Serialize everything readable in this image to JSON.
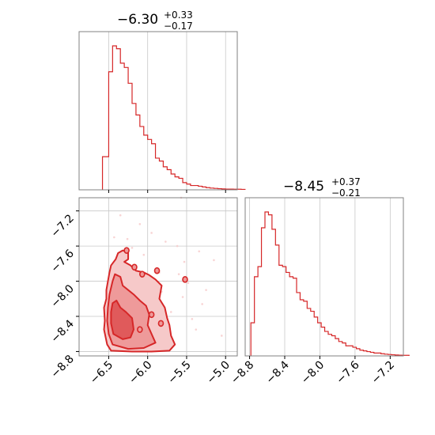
{
  "colors": {
    "line": "#d62728",
    "fill_light": "#f6c9c9",
    "fill_mid": "#ee9a9a",
    "grid": "#c8c8c8",
    "axes": "#808080",
    "background": "#ffffff"
  },
  "chart_data": [
    {
      "type": "histogram",
      "panel": "top-left",
      "title": {
        "median": "−6.30",
        "plus": "+0.33",
        "minus": "−0.17"
      },
      "xlim": [
        -6.88,
        -4.85
      ],
      "grid": true,
      "bins": {
        "start": -6.5,
        "width": 0.05,
        "heights": [
          0.82,
          1.0,
          0.98,
          0.88,
          0.85,
          0.74,
          0.6,
          0.52,
          0.44,
          0.38,
          0.35,
          0.32,
          0.22,
          0.2,
          0.16,
          0.14,
          0.11,
          0.09,
          0.08,
          0.05,
          0.04,
          0.03,
          0.03,
          0.025,
          0.02,
          0.015,
          0.012,
          0.01,
          0.008,
          0.006,
          0.005,
          0.005,
          0.004,
          0.004,
          0.003
        ],
        "lead_in": {
          "from": -6.58,
          "height": 0.23
        }
      }
    },
    {
      "type": "histogram",
      "panel": "bottom-right",
      "title": {
        "median": "−8.45",
        "plus": "+0.37",
        "minus": "−0.21"
      },
      "xlim": [
        -8.85,
        -7.05
      ],
      "x_ticks": [
        -8.8,
        -8.4,
        -8.0,
        -7.6,
        -7.2
      ],
      "x_tick_labels": [
        "−8.8",
        "−8.4",
        "−8.0",
        "−7.6",
        "−7.2"
      ],
      "grid": true,
      "bins": {
        "start": -8.785,
        "width": 0.04,
        "heights": [
          0.23,
          0.55,
          0.62,
          0.89,
          1.0,
          0.98,
          0.88,
          0.77,
          0.63,
          0.62,
          0.58,
          0.55,
          0.54,
          0.44,
          0.39,
          0.38,
          0.33,
          0.31,
          0.27,
          0.23,
          0.2,
          0.17,
          0.15,
          0.14,
          0.12,
          0.1,
          0.09,
          0.07,
          0.07,
          0.06,
          0.05,
          0.04,
          0.035,
          0.03,
          0.025,
          0.02,
          0.02,
          0.015,
          0.012,
          0.01,
          0.008,
          0.006,
          0.005,
          0.004,
          0.004
        ]
      }
    },
    {
      "type": "contour",
      "panel": "bottom-left",
      "xlim": [
        -6.88,
        -4.85
      ],
      "ylim": [
        -8.85,
        -7.05
      ],
      "x_ticks": [
        -6.5,
        -6.0,
        -5.5,
        -5.0
      ],
      "x_tick_labels": [
        "−6.5",
        "−6.0",
        "−5.5",
        "−5.0"
      ],
      "y_ticks": [
        -7.2,
        -7.6,
        -8.0,
        -8.4,
        -8.8
      ],
      "y_tick_labels": [
        "−7.2",
        "−7.6",
        "−8.0",
        "−8.4",
        "−8.8"
      ],
      "grid": true,
      "scatter_outliers": [
        [
          -6.26,
          -7.52
        ],
        [
          -5.57,
          -7.05
        ],
        [
          -5.15,
          -7.76
        ],
        [
          -5.3,
          -8.26
        ],
        [
          -5.43,
          -8.43
        ],
        [
          -5.7,
          -8.35
        ],
        [
          -5.53,
          -7.78
        ],
        [
          -5.8,
          -8.78
        ],
        [
          -6.35,
          -7.25
        ],
        [
          -6.43,
          -7.5
        ],
        [
          -5.95,
          -7.45
        ],
        [
          -5.25,
          -8.1
        ],
        [
          -5.62,
          -7.6
        ],
        [
          -6.1,
          -7.35
        ],
        [
          -5.38,
          -8.55
        ],
        [
          -5.05,
          -8.62
        ],
        [
          -5.85,
          -7.9
        ],
        [
          -6.05,
          -7.7
        ],
        [
          -5.48,
          -8.02
        ],
        [
          -5.72,
          -8.62
        ],
        [
          -5.9,
          -8.3
        ],
        [
          -6.2,
          -7.62
        ],
        [
          -5.6,
          -7.92
        ],
        [
          -5.34,
          -7.66
        ],
        [
          -5.77,
          -7.55
        ],
        [
          -6.15,
          -8.0
        ],
        [
          -5.98,
          -8.68
        ],
        [
          -5.55,
          -8.18
        ],
        [
          -5.82,
          -8.12
        ],
        [
          -6.02,
          -7.95
        ]
      ],
      "outer_contour": [
        [
          -6.47,
          -8.79
        ],
        [
          -6.52,
          -8.72
        ],
        [
          -6.56,
          -8.55
        ],
        [
          -6.55,
          -8.45
        ],
        [
          -6.56,
          -8.3
        ],
        [
          -6.53,
          -8.2
        ],
        [
          -6.53,
          -8.1
        ],
        [
          -6.51,
          -8.0
        ],
        [
          -6.49,
          -7.9
        ],
        [
          -6.47,
          -7.82
        ],
        [
          -6.41,
          -7.75
        ],
        [
          -6.38,
          -7.68
        ],
        [
          -6.32,
          -7.65
        ],
        [
          -6.25,
          -7.67
        ],
        [
          -6.25,
          -7.75
        ],
        [
          -6.3,
          -7.78
        ],
        [
          -6.22,
          -7.82
        ],
        [
          -6.15,
          -7.88
        ],
        [
          -6.05,
          -7.9
        ],
        [
          -5.98,
          -7.93
        ],
        [
          -5.9,
          -7.98
        ],
        [
          -5.82,
          -8.05
        ],
        [
          -5.85,
          -8.2
        ],
        [
          -5.78,
          -8.3
        ],
        [
          -5.75,
          -8.42
        ],
        [
          -5.72,
          -8.5
        ],
        [
          -5.7,
          -8.62
        ],
        [
          -5.65,
          -8.72
        ],
        [
          -5.72,
          -8.79
        ],
        [
          -5.95,
          -8.8
        ],
        [
          -6.2,
          -8.8
        ]
      ],
      "mid_contour": [
        [
          -6.45,
          -8.72
        ],
        [
          -6.5,
          -8.6
        ],
        [
          -6.52,
          -8.45
        ],
        [
          -6.51,
          -8.3
        ],
        [
          -6.49,
          -8.15
        ],
        [
          -6.45,
          -8.0
        ],
        [
          -6.42,
          -7.92
        ],
        [
          -6.35,
          -7.95
        ],
        [
          -6.32,
          -8.05
        ],
        [
          -6.25,
          -8.1
        ],
        [
          -6.18,
          -8.15
        ],
        [
          -6.1,
          -8.22
        ],
        [
          -6.02,
          -8.28
        ],
        [
          -5.98,
          -8.38
        ],
        [
          -6.0,
          -8.5
        ],
        [
          -5.95,
          -8.6
        ],
        [
          -5.9,
          -8.7
        ],
        [
          -6.05,
          -8.76
        ],
        [
          -6.25,
          -8.77
        ]
      ],
      "inner_contour": [
        [
          -6.44,
          -8.6
        ],
        [
          -6.47,
          -8.48
        ],
        [
          -6.47,
          -8.35
        ],
        [
          -6.45,
          -8.25
        ],
        [
          -6.4,
          -8.22
        ],
        [
          -6.35,
          -8.3
        ],
        [
          -6.28,
          -8.35
        ],
        [
          -6.2,
          -8.42
        ],
        [
          -6.18,
          -8.55
        ],
        [
          -6.22,
          -8.64
        ],
        [
          -6.32,
          -8.66
        ]
      ],
      "islands": [
        [
          -6.07,
          -7.92
        ],
        [
          -5.88,
          -7.88
        ],
        [
          -5.52,
          -7.98
        ],
        [
          -5.95,
          -8.38
        ],
        [
          -5.83,
          -8.48
        ],
        [
          -6.17,
          -7.84
        ],
        [
          -6.27,
          -7.65
        ],
        [
          -6.1,
          -8.55
        ]
      ]
    }
  ]
}
